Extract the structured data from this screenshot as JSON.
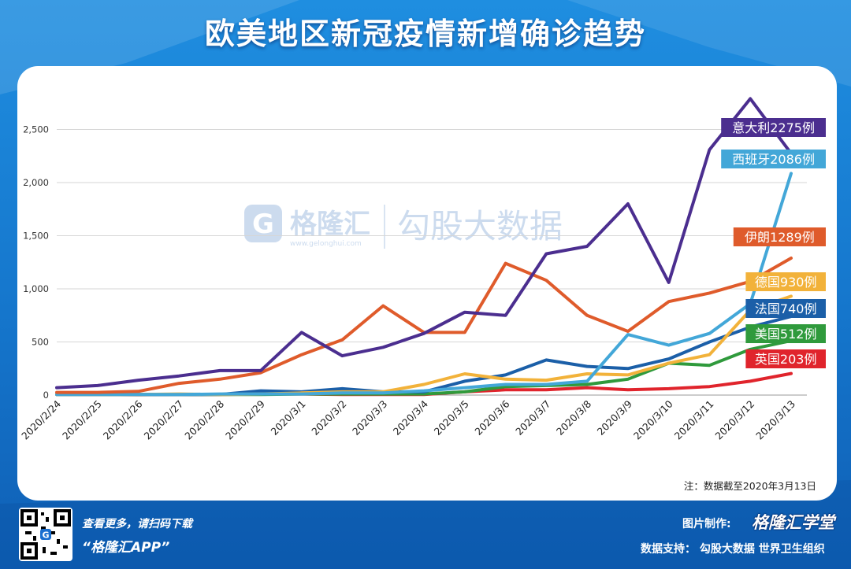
{
  "header": {
    "title": "欧美地区新冠疫情新增确诊趋势"
  },
  "watermark": {
    "brand": "格隆汇",
    "url": "www.gelonghui.com",
    "source": "勾股大数据"
  },
  "footer": {
    "scan_text": "查看更多，请扫码下载",
    "app_name": "“格隆汇APP”",
    "made_by_label": "图片制作:",
    "brand_name": "格隆汇学堂",
    "support": "数据支持： 勾股大数据  世界卫生组织"
  },
  "chart_data": {
    "type": "line",
    "title": "欧美地区新冠疫情新增确诊趋势",
    "note": "注：数据截至2020年3月13日",
    "ylim": [
      0,
      2800
    ],
    "yticks": [
      0,
      500,
      1000,
      1500,
      2000,
      2500
    ],
    "ytick_labels": [
      "0",
      "500",
      "1,000",
      "1,500",
      "2,000",
      "2,500"
    ],
    "categories": [
      "2020/2/24",
      "2020/2/25",
      "2020/2/26",
      "2020/2/27",
      "2020/2/28",
      "2020/2/29",
      "2020/3/1",
      "2020/3/2",
      "2020/3/3",
      "2020/3/4",
      "2020/3/5",
      "2020/3/6",
      "2020/3/7",
      "2020/3/8",
      "2020/3/9",
      "2020/3/10",
      "2020/3/11",
      "2020/3/12",
      "2020/3/13"
    ],
    "series": [
      {
        "name": "英国",
        "label": "英国203例",
        "color": "#e0242c",
        "values": [
          5,
          5,
          3,
          5,
          5,
          10,
          10,
          5,
          5,
          5,
          30,
          50,
          50,
          70,
          50,
          60,
          80,
          130,
          203
        ]
      },
      {
        "name": "美国",
        "label": "美国512例",
        "color": "#2f9a3c",
        "values": [
          5,
          5,
          5,
          5,
          5,
          5,
          10,
          10,
          10,
          10,
          30,
          80,
          90,
          100,
          150,
          300,
          280,
          430,
          512
        ]
      },
      {
        "name": "法国",
        "label": "法国740例",
        "color": "#1b5fa8",
        "values": [
          5,
          5,
          5,
          5,
          5,
          40,
          30,
          60,
          30,
          30,
          130,
          190,
          330,
          270,
          250,
          340,
          500,
          640,
          740
        ]
      },
      {
        "name": "德国",
        "label": "德国930例",
        "color": "#f2b23a",
        "values": [
          5,
          5,
          5,
          10,
          5,
          10,
          20,
          30,
          30,
          100,
          200,
          150,
          140,
          200,
          190,
          300,
          380,
          800,
          930
        ]
      },
      {
        "name": "西班牙",
        "label": "西班牙2086例",
        "color": "#43a7d8",
        "values": [
          5,
          5,
          5,
          5,
          10,
          10,
          10,
          20,
          20,
          40,
          70,
          100,
          100,
          130,
          570,
          470,
          580,
          860,
          2086
        ]
      },
      {
        "name": "伊朗",
        "label": "伊朗1289例",
        "color": "#df5b2b",
        "values": [
          25,
          25,
          35,
          110,
          150,
          210,
          380,
          520,
          840,
          590,
          590,
          1240,
          1080,
          750,
          600,
          880,
          960,
          1070,
          1289
        ]
      },
      {
        "name": "意大利",
        "label": "意大利2275例",
        "color": "#4b2e8f",
        "values": [
          70,
          90,
          140,
          180,
          230,
          230,
          590,
          370,
          450,
          580,
          780,
          750,
          1330,
          1400,
          1800,
          1060,
          2310,
          2790,
          2275
        ]
      }
    ]
  }
}
